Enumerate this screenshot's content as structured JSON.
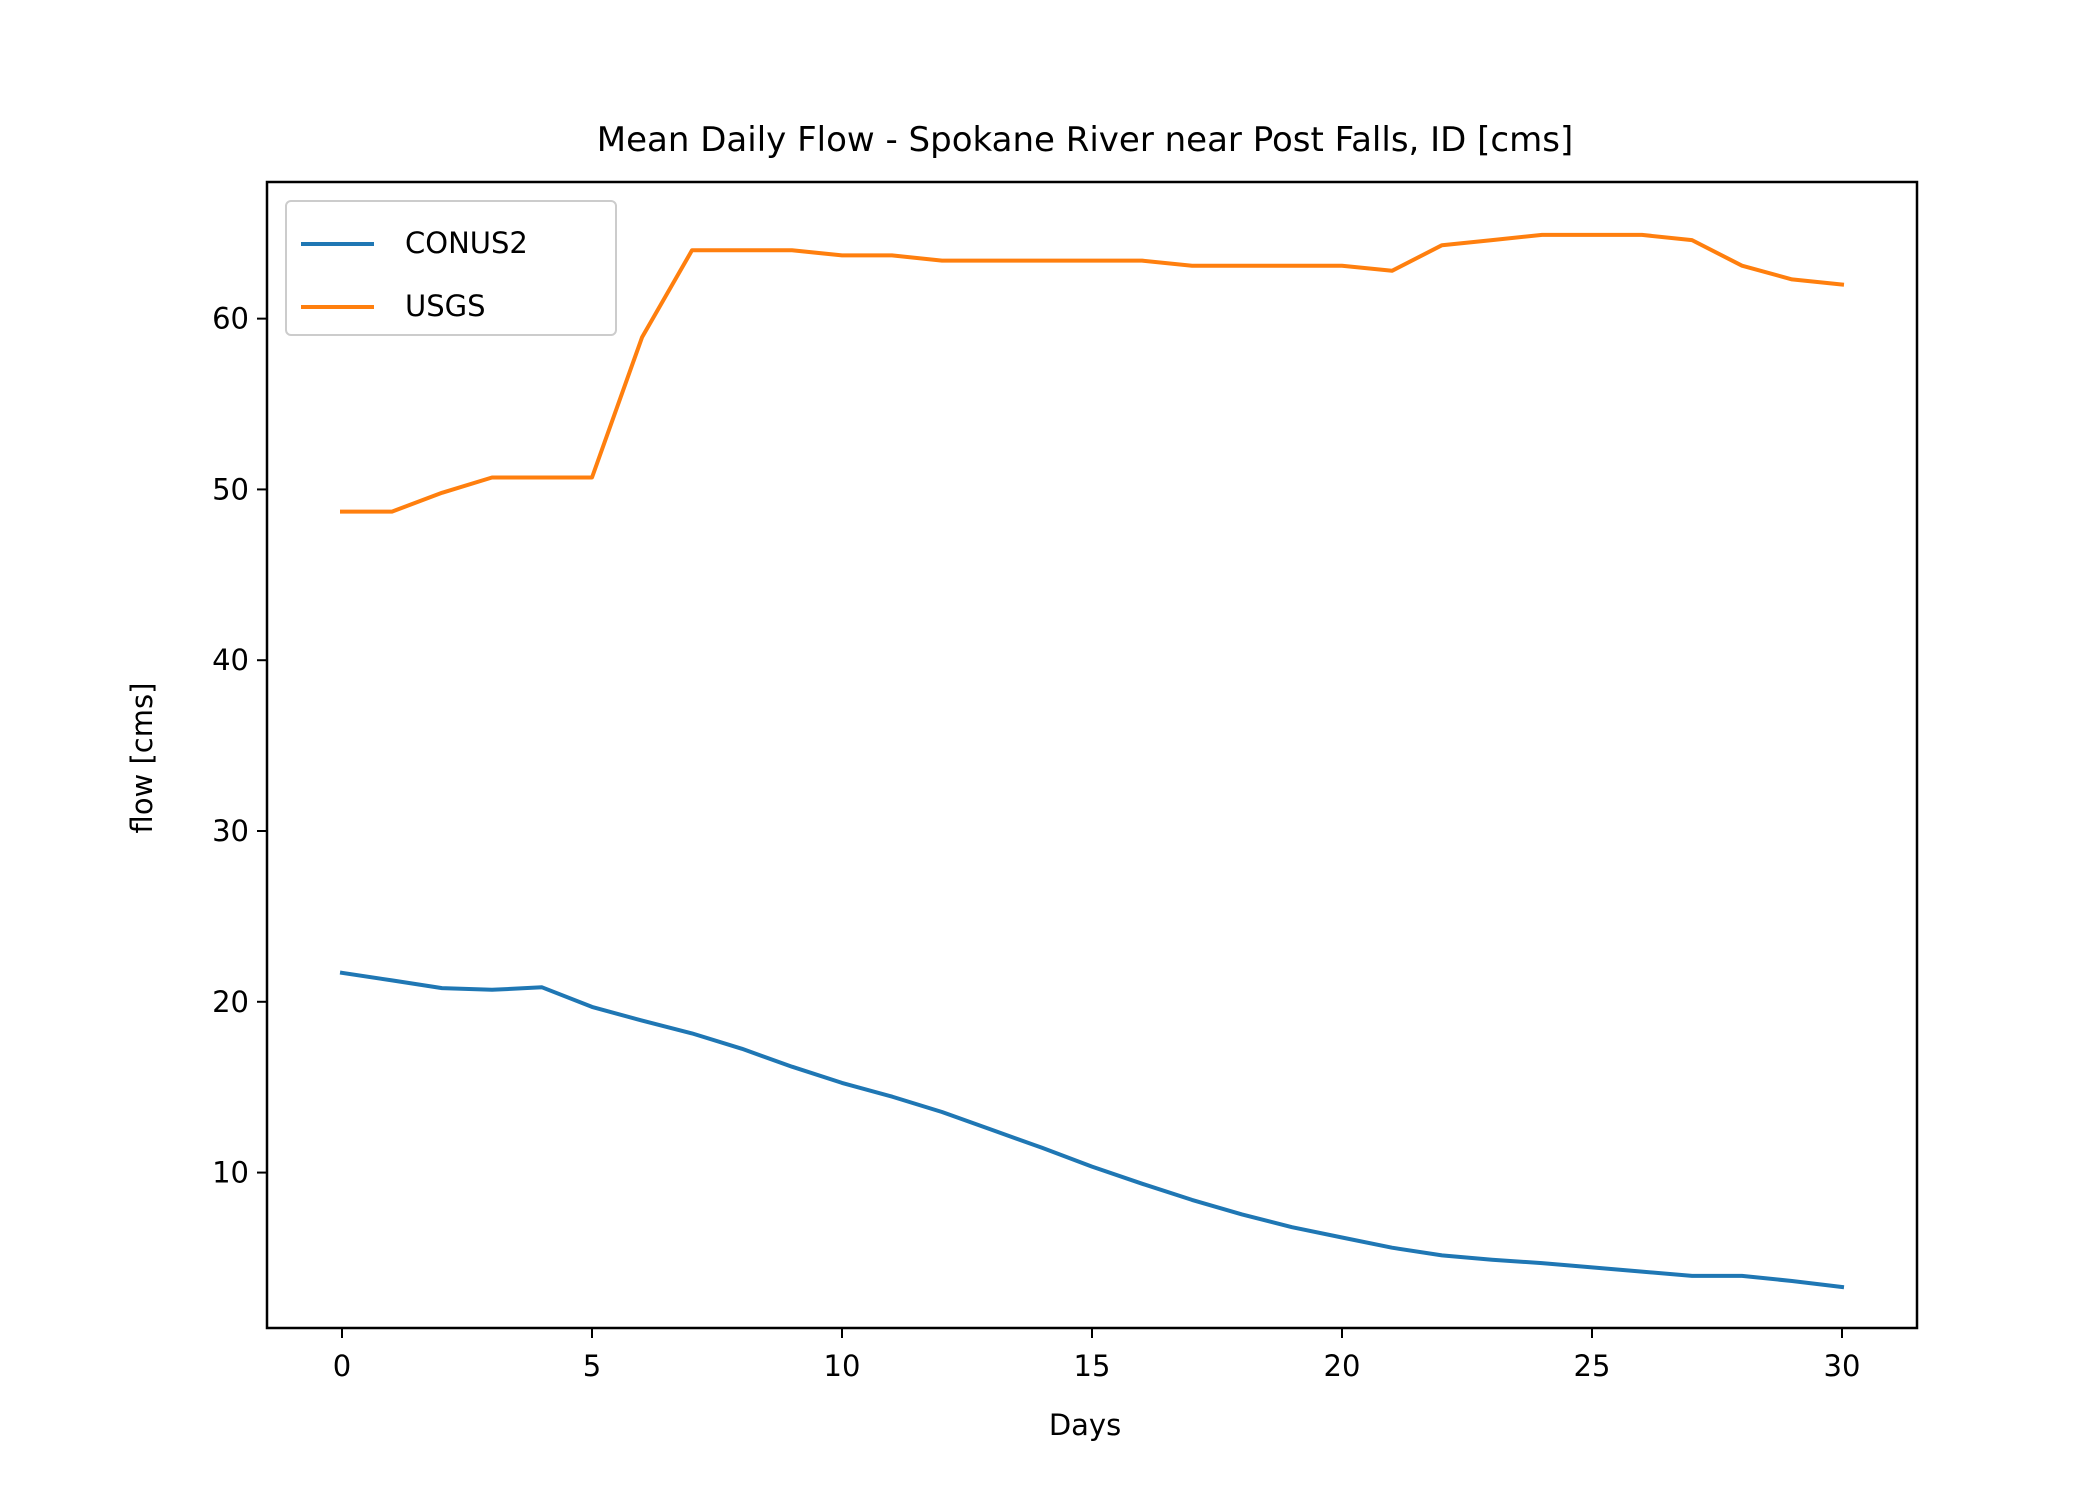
{
  "chart_data": {
    "type": "line",
    "title": "Mean Daily Flow - Spokane River near Post Falls, ID [cms]",
    "xlabel": "Days",
    "ylabel": "flow [cms]",
    "xlim": [
      -1.5,
      31.5
    ],
    "ylim": [
      0.9,
      68.0
    ],
    "xticks": [
      0,
      5,
      10,
      15,
      20,
      25,
      30
    ],
    "yticks": [
      10,
      20,
      30,
      40,
      50,
      60
    ],
    "grid": false,
    "legend": "upper left",
    "x": [
      0,
      1,
      2,
      3,
      4,
      5,
      6,
      7,
      8,
      9,
      10,
      11,
      12,
      13,
      14,
      15,
      16,
      17,
      18,
      19,
      20,
      21,
      22,
      23,
      24,
      25,
      26,
      27,
      28,
      29,
      30
    ],
    "series": [
      {
        "name": "CONUS2",
        "color": "#1f77b4",
        "values": [
          21.7,
          21.25,
          20.8,
          20.7,
          20.85,
          19.7,
          18.9,
          18.15,
          17.25,
          16.2,
          15.25,
          14.45,
          13.55,
          12.5,
          11.45,
          10.35,
          9.35,
          8.4,
          7.55,
          6.8,
          6.2,
          5.6,
          5.15,
          4.9,
          4.7,
          4.45,
          4.2,
          3.95,
          3.95,
          3.65,
          3.3
        ]
      },
      {
        "name": "USGS",
        "color": "#ff7f0e",
        "values": [
          48.7,
          48.7,
          49.8,
          50.7,
          50.7,
          50.7,
          58.9,
          64.0,
          64.0,
          64.0,
          63.7,
          63.7,
          63.4,
          63.4,
          63.4,
          63.4,
          63.4,
          63.1,
          63.1,
          63.1,
          63.1,
          62.8,
          64.3,
          64.6,
          64.9,
          64.9,
          64.9,
          64.6,
          63.1,
          62.3,
          62.0
        ]
      }
    ]
  }
}
